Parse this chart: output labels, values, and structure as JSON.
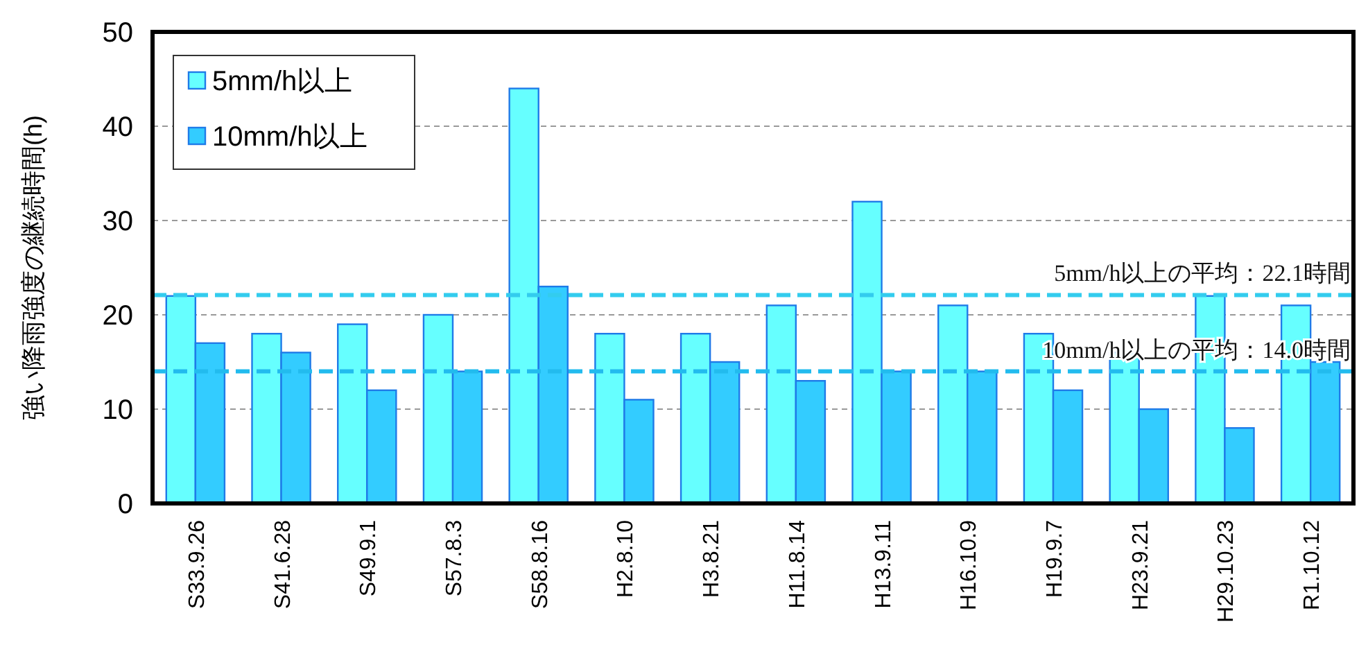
{
  "chart_data": {
    "type": "bar",
    "ylabel": "強い降雨強度の継続時間(h)",
    "categories": [
      "S33.9.26",
      "S41.6.28",
      "S49.9.1",
      "S57.8.3",
      "S58.8.16",
      "H2.8.10",
      "H3.8.21",
      "H11.8.14",
      "H13.9.11",
      "H16.10.9",
      "H19.9.7",
      "H23.9.21",
      "H29.10.23",
      "R1.10.12"
    ],
    "series": [
      {
        "name": "5mm/h以上",
        "color": "#66ffff",
        "values": [
          22,
          18,
          19,
          20,
          44,
          18,
          18,
          21,
          32,
          21,
          18,
          16,
          22,
          21
        ]
      },
      {
        "name": "10mm/h以上",
        "color": "#33ccff",
        "values": [
          17,
          16,
          12,
          14,
          23,
          11,
          15,
          13,
          14,
          14,
          12,
          10,
          8,
          15
        ]
      }
    ],
    "ylim": [
      0,
      50
    ],
    "yticks": [
      0,
      10,
      20,
      30,
      40,
      50
    ],
    "ref_lines": [
      {
        "axis": "y",
        "value": 22.1,
        "label": "5mm/h以上の平均：22.1時間",
        "color": "#33ccee",
        "line_style": "dashed"
      },
      {
        "axis": "y",
        "value": 14.0,
        "label": "10mm/h以上の平均：14.0時間",
        "color": "#22bbee",
        "line_style": "dashed"
      }
    ],
    "grid": "y",
    "legend": "top left"
  }
}
